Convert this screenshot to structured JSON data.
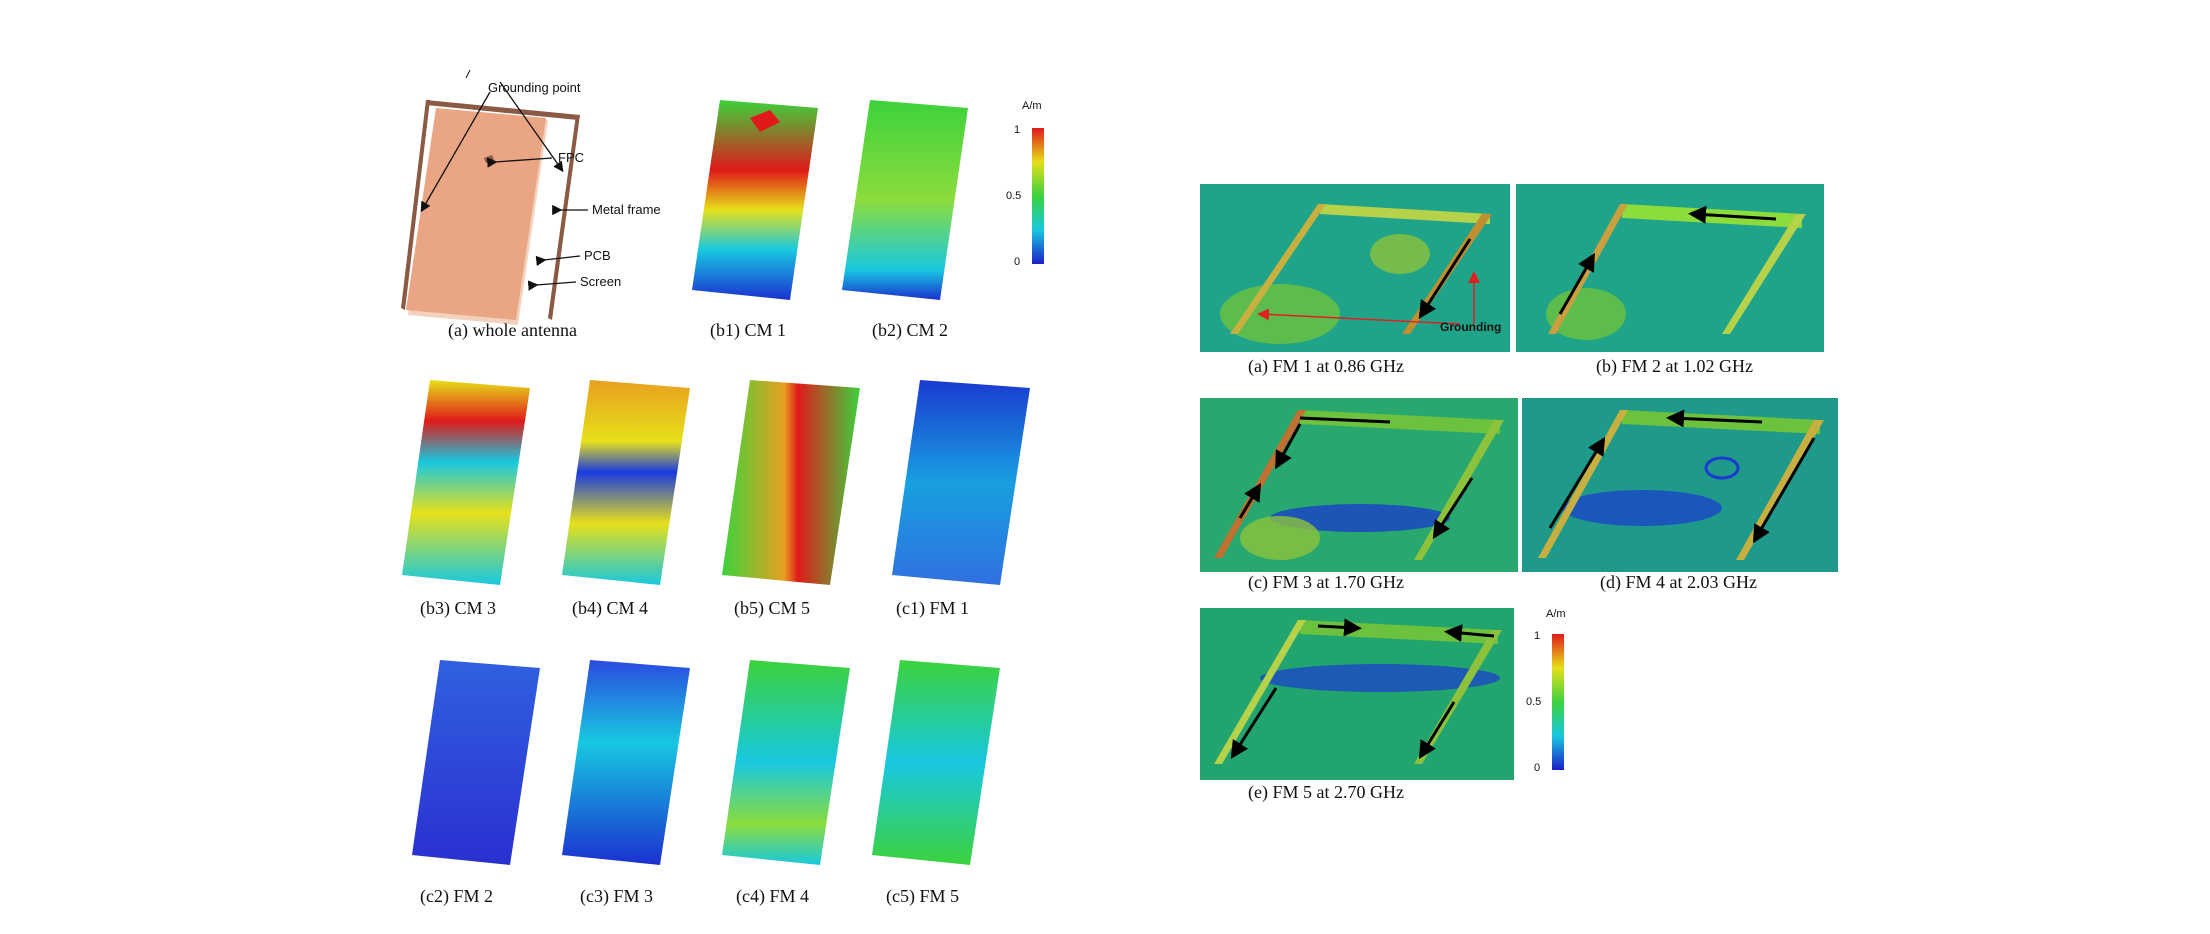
{
  "left": {
    "antenna_labels": {
      "grounding_point": "Grounding point",
      "fpc": "FPC",
      "metal_frame": "Metal frame",
      "pcb": "PCB",
      "screen": "Screen"
    },
    "colorbar": {
      "unit": "A/m",
      "ticks": [
        "1",
        "0.5",
        "0"
      ]
    },
    "captions": {
      "a": "(a) whole antenna",
      "b1": "(b1) CM 1",
      "b2": "(b2) CM 2",
      "b3": "(b3) CM 3",
      "b4": "(b4) CM 4",
      "b5": "(b5) CM 5",
      "c1": "(c1) FM 1",
      "c2": "(c2) FM 2",
      "c3": "(c3) FM 3",
      "c4": "(c4) FM 4",
      "c5": "(c5) FM 5"
    }
  },
  "right": {
    "grounding_label": "Grounding",
    "colorbar": {
      "unit": "A/m",
      "ticks": [
        "1",
        "0.5",
        "0"
      ]
    },
    "captions": {
      "a": "(a) FM 1 at 0.86 GHz",
      "b": "(b) FM 2 at 1.02 GHz",
      "c": "(c) FM 3 at 1.70 GHz",
      "d": "(d) FM 4 at 2.03 GHz",
      "e": "(e) FM 5 at 2.70 GHz"
    }
  },
  "colors": {
    "jet_red": "#e8201c",
    "jet_yellow": "#e6e01a",
    "jet_green": "#3cc63c",
    "jet_cyan": "#18c8d8",
    "jet_blue": "#1a3ae0",
    "pcb": "#eaa585",
    "frame": "#8a5a44"
  }
}
